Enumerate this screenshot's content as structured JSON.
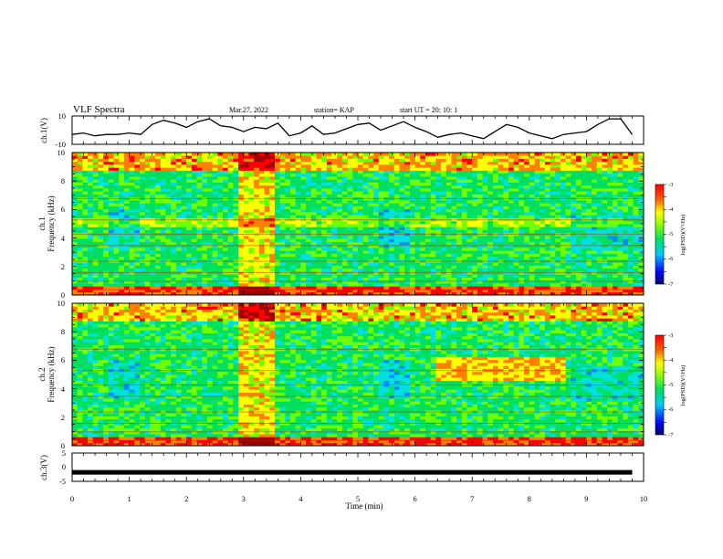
{
  "header": {
    "title": "VLF Spectra",
    "date": "Mar.27, 2022",
    "station": "station= KAP",
    "start": "start  UT  =   20: 10: 1"
  },
  "colors": {
    "palette": [
      "#000066",
      "#0000ff",
      "#0088ff",
      "#00e0e0",
      "#00e060",
      "#70ff00",
      "#ffff00",
      "#ff8000",
      "#ff0000",
      "#a00000"
    ],
    "trace": "#000000",
    "frame": "#000000"
  },
  "chart_data": [
    {
      "id": "ch1-waveform",
      "type": "line",
      "ylabel": "ch.1(V)",
      "ylim": [
        -10,
        10
      ],
      "ytick_labels": [
        "10",
        "-10"
      ],
      "xlim": [
        0,
        10
      ],
      "x": [
        0.0,
        0.2,
        0.4,
        0.6,
        0.8,
        1.0,
        1.2,
        1.4,
        1.6,
        1.8,
        2.0,
        2.2,
        2.4,
        2.6,
        2.8,
        3.0,
        3.2,
        3.4,
        3.6,
        3.8,
        4.0,
        4.2,
        4.4,
        4.6,
        4.8,
        5.0,
        5.2,
        5.4,
        5.6,
        5.8,
        6.0,
        6.2,
        6.4,
        6.6,
        6.8,
        7.0,
        7.2,
        7.4,
        7.6,
        7.8,
        8.0,
        8.2,
        8.4,
        8.6,
        8.8,
        9.0,
        9.2,
        9.4,
        9.6,
        9.8
      ],
      "y": [
        -3,
        -2,
        -4,
        -3,
        -3,
        -2,
        -3,
        4,
        7,
        5,
        2,
        6,
        8,
        3,
        2,
        -1,
        2,
        1,
        5,
        -4,
        -2,
        3,
        -3,
        -2,
        1,
        4,
        5,
        0,
        3,
        6,
        2,
        -1,
        -5,
        -3,
        -2,
        -4,
        -6,
        -1,
        4,
        2,
        -2,
        -4,
        -6,
        -3,
        -2,
        -1,
        4,
        8,
        8,
        -3
      ]
    },
    {
      "id": "ch1-spectrogram",
      "type": "heatmap",
      "ylabel_lines": [
        "ch.1",
        "Frequency  (kHz)"
      ],
      "ylim": [
        0,
        10
      ],
      "ytick_labels": [
        "0",
        "2",
        "4",
        "6",
        "8",
        "10"
      ],
      "xlim": [
        0,
        10
      ],
      "colorbar": {
        "label": "log(PSD)(V²/Hz)",
        "range": [
          -7,
          -3
        ],
        "tick_labels": [
          "-3",
          "-4",
          "-5",
          "-6",
          "-7"
        ]
      }
    },
    {
      "id": "ch2-spectrogram",
      "type": "heatmap",
      "ylabel_lines": [
        "ch.2",
        "Frequency  (kHz)"
      ],
      "ylim": [
        0,
        10
      ],
      "ytick_labels": [
        "0",
        "2",
        "4",
        "6",
        "8",
        "10"
      ],
      "xlim": [
        0,
        10
      ],
      "colorbar": {
        "label": "log(PSD)(V²/Hz)",
        "range": [
          -7,
          -3
        ],
        "tick_labels": [
          "-3",
          "-4",
          "-5",
          "-6",
          "-7"
        ]
      }
    },
    {
      "id": "ch3-waveform",
      "type": "line",
      "ylabel": "ch.3(V)",
      "ylim": [
        -5,
        5
      ],
      "ytick_labels": [
        "5",
        "0",
        "-5"
      ],
      "xlim": [
        0,
        10
      ],
      "xlabel": "Time  (min)",
      "xtick_labels": [
        "0",
        "1",
        "2",
        "3",
        "4",
        "5",
        "6",
        "7",
        "8",
        "9",
        "10"
      ],
      "x": [
        0,
        9.8
      ],
      "y": [
        -1.8,
        -1.8
      ]
    }
  ]
}
